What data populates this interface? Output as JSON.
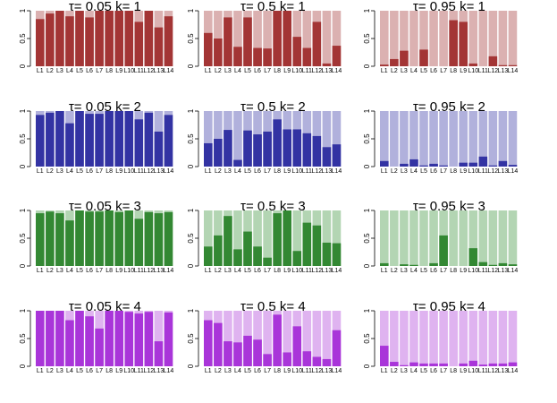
{
  "chart_data": {
    "type": "bar",
    "layout": "grid of stacked proportion bar charts, 4 rows (k) by 3 columns (tau)",
    "categories": [
      "L1",
      "L2",
      "L3",
      "L4",
      "L5",
      "L6",
      "L7",
      "L8",
      "L9",
      "L10",
      "L11",
      "L12",
      "L13",
      "L14"
    ],
    "ylim": [
      0,
      1
    ],
    "yticks": [
      "0",
      "0.5",
      "1"
    ],
    "colors": {
      "k1": {
        "dark": "#a33535",
        "light": "#dbb1b1"
      },
      "k2": {
        "dark": "#3333a3",
        "light": "#b1b1dc"
      },
      "k3": {
        "dark": "#338833",
        "light": "#b3d5b3"
      },
      "k4": {
        "dark": "#a935d9",
        "light": "#dfb3f0"
      }
    },
    "panels": [
      {
        "title_tau": "τ",
        "title_rest": "= 0.05 k= 1",
        "k": "k1",
        "values": [
          0.85,
          0.95,
          1.0,
          0.9,
          1.0,
          0.88,
          1.0,
          1.0,
          1.0,
          1.0,
          0.8,
          1.0,
          0.7,
          0.9
        ]
      },
      {
        "title_tau": "τ",
        "title_rest": "= 0.5 k= 1",
        "k": "k1",
        "values": [
          0.6,
          0.5,
          0.88,
          0.35,
          0.88,
          0.33,
          0.32,
          1.0,
          1.0,
          0.53,
          0.33,
          0.8,
          0.05,
          0.37
        ]
      },
      {
        "title_tau": "τ",
        "title_rest": "= 0.95 k= 1",
        "k": "k1",
        "values": [
          0.03,
          0.13,
          0.28,
          0.0,
          0.3,
          0.0,
          0.0,
          0.83,
          0.8,
          0.05,
          0.0,
          0.18,
          0.02,
          0.02
        ]
      },
      {
        "title_tau": "τ",
        "title_rest": "= 0.05 k= 2",
        "k": "k2",
        "values": [
          0.93,
          0.97,
          1.0,
          0.78,
          1.0,
          0.95,
          0.95,
          1.0,
          1.0,
          1.0,
          0.85,
          0.97,
          0.63,
          0.93
        ]
      },
      {
        "title_tau": "τ",
        "title_rest": "= 0.5 k= 2",
        "k": "k2",
        "values": [
          0.42,
          0.5,
          0.66,
          0.12,
          0.65,
          0.58,
          0.63,
          0.85,
          0.67,
          0.67,
          0.6,
          0.55,
          0.35,
          0.4
        ]
      },
      {
        "title_tau": "τ",
        "title_rest": "= 0.95 k= 2",
        "k": "k2",
        "values": [
          0.1,
          0.0,
          0.05,
          0.13,
          0.02,
          0.05,
          0.02,
          0.0,
          0.07,
          0.07,
          0.18,
          0.02,
          0.1,
          0.03
        ]
      },
      {
        "title_tau": "τ",
        "title_rest": "= 0.05 k= 3",
        "k": "k3",
        "values": [
          0.95,
          0.98,
          0.95,
          0.82,
          1.0,
          0.98,
          0.98,
          1.0,
          0.97,
          1.0,
          0.85,
          0.97,
          0.95,
          0.97
        ]
      },
      {
        "title_tau": "τ",
        "title_rest": "= 0.5 k= 3",
        "k": "k3",
        "values": [
          0.35,
          0.55,
          0.9,
          0.3,
          0.62,
          0.35,
          0.15,
          0.95,
          1.0,
          0.27,
          0.78,
          0.73,
          0.42,
          0.41
        ]
      },
      {
        "title_tau": "τ",
        "title_rest": "= 0.95 k= 3",
        "k": "k3",
        "values": [
          0.05,
          0.0,
          0.03,
          0.02,
          0.0,
          0.05,
          0.55,
          0.0,
          0.0,
          0.32,
          0.07,
          0.02,
          0.05,
          0.03
        ]
      },
      {
        "title_tau": "τ",
        "title_rest": "= 0.05 k= 4",
        "k": "k4",
        "values": [
          1.0,
          1.0,
          1.0,
          0.83,
          1.0,
          0.9,
          0.68,
          1.0,
          1.0,
          0.98,
          0.95,
          0.98,
          0.45,
          0.97
        ]
      },
      {
        "title_tau": "τ",
        "title_rest": "= 0.5 k= 4",
        "k": "k4",
        "values": [
          0.83,
          0.78,
          0.45,
          0.43,
          0.55,
          0.48,
          0.22,
          0.93,
          0.25,
          0.72,
          0.27,
          0.17,
          0.13,
          0.65
        ]
      },
      {
        "title_tau": "τ",
        "title_rest": "= 0.95 k= 4",
        "k": "k4",
        "values": [
          0.37,
          0.08,
          0.02,
          0.07,
          0.05,
          0.05,
          0.05,
          0.0,
          0.05,
          0.1,
          0.03,
          0.05,
          0.05,
          0.07
        ]
      }
    ]
  }
}
